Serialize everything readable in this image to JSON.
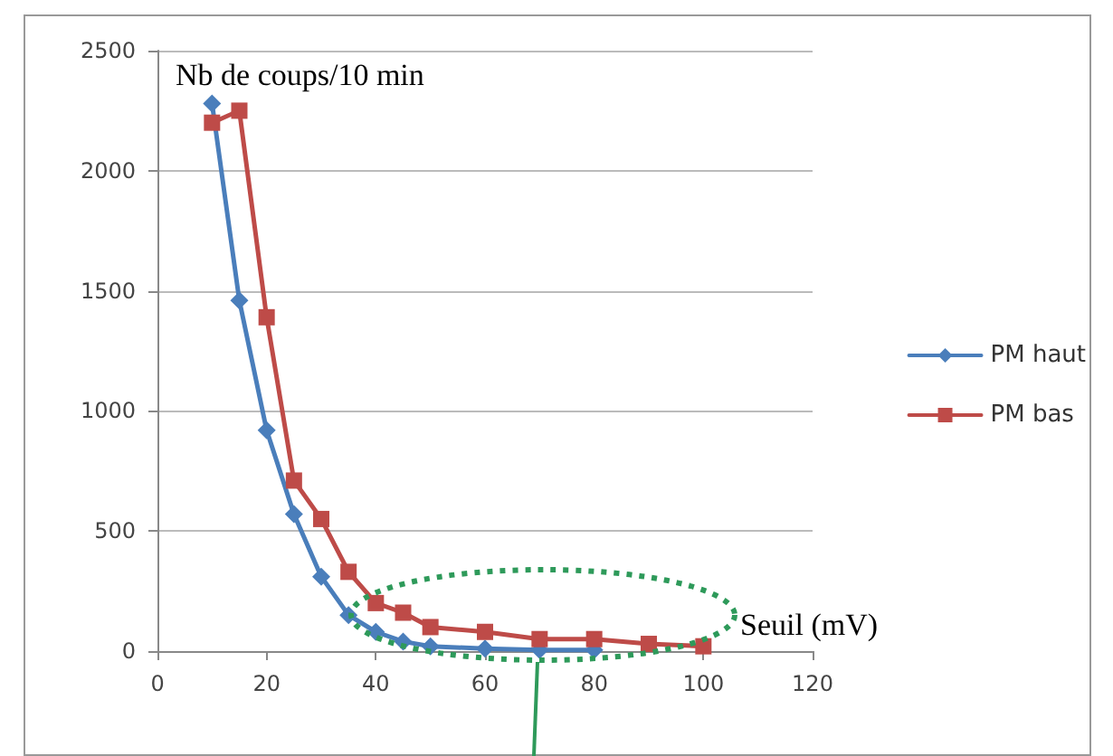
{
  "chart_data": {
    "type": "line",
    "xlabel": "Seuil (mV)",
    "ylabel": "Nb de coups/10 min",
    "x": [
      10,
      15,
      20,
      25,
      30,
      35,
      40,
      45,
      50,
      60,
      70,
      80,
      90,
      100
    ],
    "series": [
      {
        "name": "PM haut",
        "color": "#4a7ebb",
        "marker": "diamond",
        "values": [
          2280,
          1460,
          920,
          570,
          310,
          150,
          80,
          40,
          20,
          10,
          5,
          5,
          null,
          null
        ]
      },
      {
        "name": "PM bas",
        "color": "#be4b48",
        "marker": "square",
        "values": [
          2200,
          2250,
          1390,
          710,
          550,
          330,
          200,
          160,
          100,
          80,
          50,
          50,
          30,
          20
        ]
      }
    ],
    "xlim": [
      0,
      120
    ],
    "xticks": [
      0,
      20,
      40,
      60,
      80,
      100,
      120
    ],
    "ylim": [
      0,
      2500
    ],
    "yticks": [
      0,
      500,
      1000,
      1500,
      2000,
      2500
    ],
    "grid": "y",
    "legend": "right",
    "line_style": "solid"
  }
}
